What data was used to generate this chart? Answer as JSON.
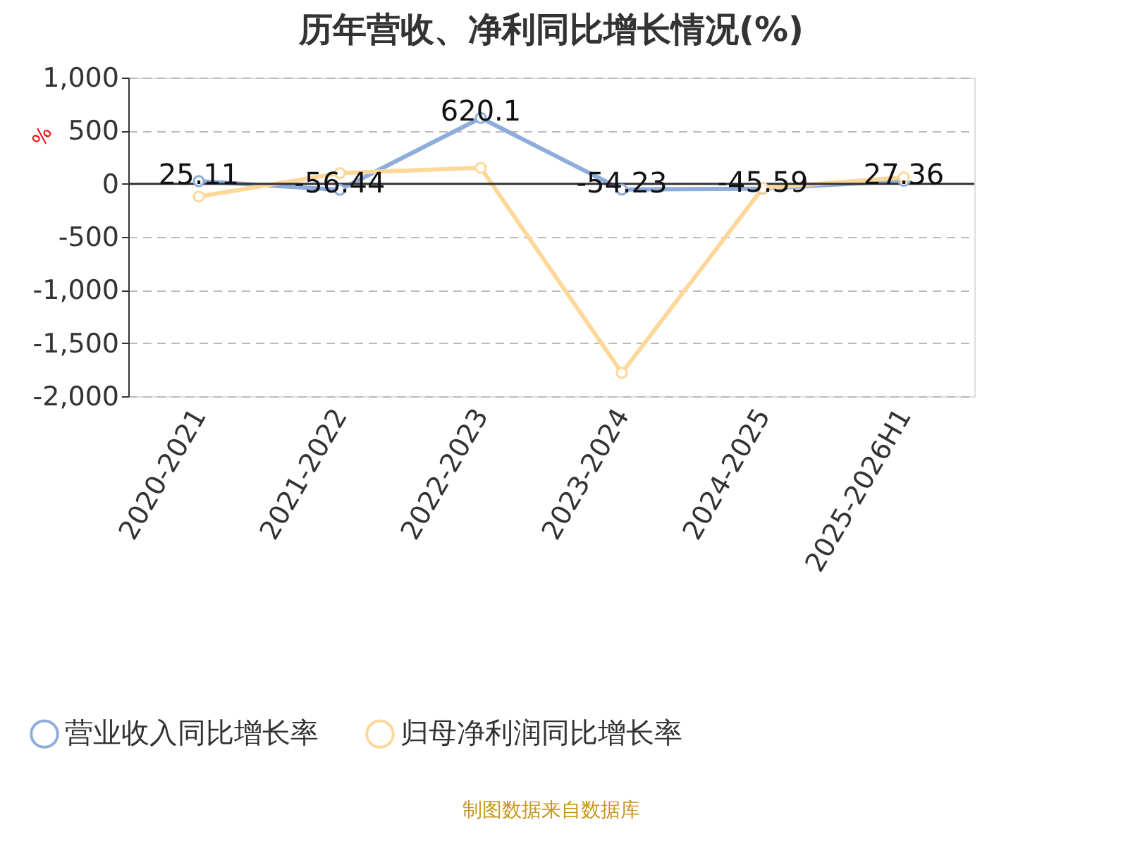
{
  "chart_data": {
    "type": "line",
    "title": "历年营收、净利同比增长情况(%)",
    "ylabel": "%",
    "categories": [
      "2020-2021",
      "2021-2022",
      "2022-2023",
      "2023-2024",
      "2024-2025",
      "2025-2026H1"
    ],
    "series": [
      {
        "name": "营业收入同比增长率",
        "color": "#8eadda",
        "values": [
          25.11,
          -56.44,
          620.1,
          -54.23,
          -45.59,
          27.36
        ],
        "value_labels": [
          "25.11",
          "-56.44",
          "620.1",
          "-54.23",
          "-45.59",
          "27.36"
        ]
      },
      {
        "name": "归母净利润同比增长率",
        "color": "#fdd89a",
        "values": [
          -120,
          100,
          150,
          -1780,
          -40,
          60
        ]
      }
    ],
    "ylim": [
      -2000,
      1000
    ],
    "yticks": [
      {
        "value": -2000,
        "label": "-2,000"
      },
      {
        "value": -1500,
        "label": "-1,500"
      },
      {
        "value": -1000,
        "label": "-1,000"
      },
      -500,
      0,
      500,
      {
        "value": 1000,
        "label": "1,000"
      }
    ],
    "grid": "y",
    "legend": "bottom",
    "marker": "circle",
    "line_style": "solid",
    "annotations": [
      "制图数据来自数据库"
    ]
  }
}
